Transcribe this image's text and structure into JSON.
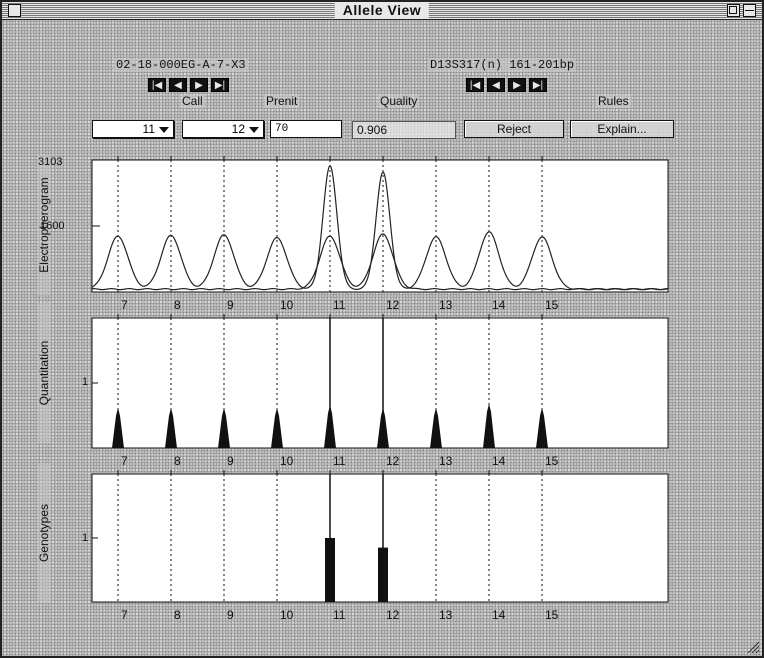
{
  "window": {
    "title": "Allele View"
  },
  "header": {
    "sample_label": "02-18-000EG-A-7-X3",
    "marker_label": "D13S317(n) 161-201bp",
    "left_nav": [
      "|◀",
      "◀",
      "▶",
      "▶|"
    ],
    "right_nav": [
      "|◀",
      "◀",
      "▶",
      "▶|"
    ]
  },
  "controls": {
    "call_label": "Call",
    "prenit_label": "Prenit",
    "quality_label": "Quality",
    "rules_label": "Rules",
    "call1": "11",
    "call2": "12",
    "prenit_value": "70",
    "quality_value": "0.906",
    "reject_label": "Reject",
    "explain_label": "Explain..."
  },
  "panels": {
    "panel1_ylabel": "Electropherogram",
    "panel1_ytick_top": "3103",
    "panel1_ytick_mid": "1600",
    "panel2_ylabel": "Quantitation",
    "panel2_ytick_mid": "1",
    "panel3_ylabel": "Genotypes",
    "panel3_ytick_mid": "1"
  },
  "chart_data": {
    "type": "line",
    "alleles": [
      "7",
      "8",
      "9",
      "10",
      "11",
      "12",
      "13",
      "14",
      "15"
    ],
    "electropherogram": {
      "ylim": [
        0,
        3103
      ],
      "yticks": [
        1600,
        3103
      ],
      "series": [
        {
          "values": [
            1350,
            1370,
            1380,
            1310,
            3050,
            2900,
            1330,
            1450,
            1330
          ]
        },
        {
          "values": [
            70,
            70,
            70,
            70,
            1350,
            1400,
            70,
            70,
            70
          ]
        }
      ]
    },
    "quantitation": {
      "ylim": [
        0,
        2
      ],
      "yticks": [
        1
      ],
      "values": [
        0.62,
        0.62,
        0.62,
        0.62,
        0.66,
        0.62,
        0.62,
        0.68,
        0.62
      ],
      "called_lines": [
        "11",
        "12"
      ]
    },
    "genotypes": {
      "ylim": [
        0,
        2
      ],
      "yticks": [
        1
      ],
      "values": [
        0,
        0,
        0,
        0,
        1.0,
        0.85,
        0,
        0,
        0
      ],
      "called_lines": [
        "11",
        "12"
      ]
    }
  }
}
